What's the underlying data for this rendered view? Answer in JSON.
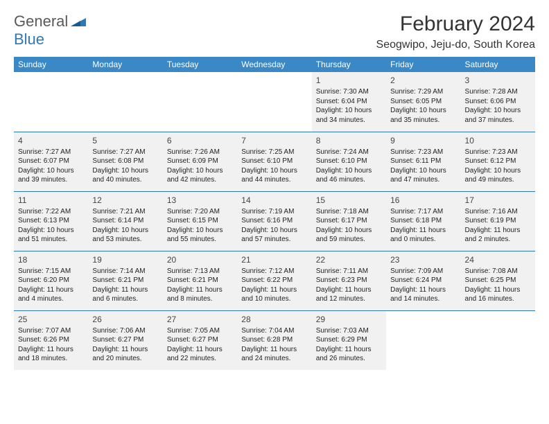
{
  "logo": {
    "general": "General",
    "blue": "Blue"
  },
  "title": {
    "month": "February 2024",
    "location": "Seogwipo, Jeju-do, South Korea"
  },
  "headers": [
    "Sunday",
    "Monday",
    "Tuesday",
    "Wednesday",
    "Thursday",
    "Friday",
    "Saturday"
  ],
  "styles": {
    "header_bg": "#3b88c7",
    "header_fg": "#ffffff",
    "cell_bg": "#f1f1f1",
    "border_color": "#2e78b8"
  },
  "weeks": [
    [
      null,
      null,
      null,
      null,
      {
        "n": "1",
        "sr": "Sunrise: 7:30 AM",
        "ss": "Sunset: 6:04 PM",
        "d1": "Daylight: 10 hours",
        "d2": "and 34 minutes."
      },
      {
        "n": "2",
        "sr": "Sunrise: 7:29 AM",
        "ss": "Sunset: 6:05 PM",
        "d1": "Daylight: 10 hours",
        "d2": "and 35 minutes."
      },
      {
        "n": "3",
        "sr": "Sunrise: 7:28 AM",
        "ss": "Sunset: 6:06 PM",
        "d1": "Daylight: 10 hours",
        "d2": "and 37 minutes."
      }
    ],
    [
      {
        "n": "4",
        "sr": "Sunrise: 7:27 AM",
        "ss": "Sunset: 6:07 PM",
        "d1": "Daylight: 10 hours",
        "d2": "and 39 minutes."
      },
      {
        "n": "5",
        "sr": "Sunrise: 7:27 AM",
        "ss": "Sunset: 6:08 PM",
        "d1": "Daylight: 10 hours",
        "d2": "and 40 minutes."
      },
      {
        "n": "6",
        "sr": "Sunrise: 7:26 AM",
        "ss": "Sunset: 6:09 PM",
        "d1": "Daylight: 10 hours",
        "d2": "and 42 minutes."
      },
      {
        "n": "7",
        "sr": "Sunrise: 7:25 AM",
        "ss": "Sunset: 6:10 PM",
        "d1": "Daylight: 10 hours",
        "d2": "and 44 minutes."
      },
      {
        "n": "8",
        "sr": "Sunrise: 7:24 AM",
        "ss": "Sunset: 6:10 PM",
        "d1": "Daylight: 10 hours",
        "d2": "and 46 minutes."
      },
      {
        "n": "9",
        "sr": "Sunrise: 7:23 AM",
        "ss": "Sunset: 6:11 PM",
        "d1": "Daylight: 10 hours",
        "d2": "and 47 minutes."
      },
      {
        "n": "10",
        "sr": "Sunrise: 7:23 AM",
        "ss": "Sunset: 6:12 PM",
        "d1": "Daylight: 10 hours",
        "d2": "and 49 minutes."
      }
    ],
    [
      {
        "n": "11",
        "sr": "Sunrise: 7:22 AM",
        "ss": "Sunset: 6:13 PM",
        "d1": "Daylight: 10 hours",
        "d2": "and 51 minutes."
      },
      {
        "n": "12",
        "sr": "Sunrise: 7:21 AM",
        "ss": "Sunset: 6:14 PM",
        "d1": "Daylight: 10 hours",
        "d2": "and 53 minutes."
      },
      {
        "n": "13",
        "sr": "Sunrise: 7:20 AM",
        "ss": "Sunset: 6:15 PM",
        "d1": "Daylight: 10 hours",
        "d2": "and 55 minutes."
      },
      {
        "n": "14",
        "sr": "Sunrise: 7:19 AM",
        "ss": "Sunset: 6:16 PM",
        "d1": "Daylight: 10 hours",
        "d2": "and 57 minutes."
      },
      {
        "n": "15",
        "sr": "Sunrise: 7:18 AM",
        "ss": "Sunset: 6:17 PM",
        "d1": "Daylight: 10 hours",
        "d2": "and 59 minutes."
      },
      {
        "n": "16",
        "sr": "Sunrise: 7:17 AM",
        "ss": "Sunset: 6:18 PM",
        "d1": "Daylight: 11 hours",
        "d2": "and 0 minutes."
      },
      {
        "n": "17",
        "sr": "Sunrise: 7:16 AM",
        "ss": "Sunset: 6:19 PM",
        "d1": "Daylight: 11 hours",
        "d2": "and 2 minutes."
      }
    ],
    [
      {
        "n": "18",
        "sr": "Sunrise: 7:15 AM",
        "ss": "Sunset: 6:20 PM",
        "d1": "Daylight: 11 hours",
        "d2": "and 4 minutes."
      },
      {
        "n": "19",
        "sr": "Sunrise: 7:14 AM",
        "ss": "Sunset: 6:21 PM",
        "d1": "Daylight: 11 hours",
        "d2": "and 6 minutes."
      },
      {
        "n": "20",
        "sr": "Sunrise: 7:13 AM",
        "ss": "Sunset: 6:21 PM",
        "d1": "Daylight: 11 hours",
        "d2": "and 8 minutes."
      },
      {
        "n": "21",
        "sr": "Sunrise: 7:12 AM",
        "ss": "Sunset: 6:22 PM",
        "d1": "Daylight: 11 hours",
        "d2": "and 10 minutes."
      },
      {
        "n": "22",
        "sr": "Sunrise: 7:11 AM",
        "ss": "Sunset: 6:23 PM",
        "d1": "Daylight: 11 hours",
        "d2": "and 12 minutes."
      },
      {
        "n": "23",
        "sr": "Sunrise: 7:09 AM",
        "ss": "Sunset: 6:24 PM",
        "d1": "Daylight: 11 hours",
        "d2": "and 14 minutes."
      },
      {
        "n": "24",
        "sr": "Sunrise: 7:08 AM",
        "ss": "Sunset: 6:25 PM",
        "d1": "Daylight: 11 hours",
        "d2": "and 16 minutes."
      }
    ],
    [
      {
        "n": "25",
        "sr": "Sunrise: 7:07 AM",
        "ss": "Sunset: 6:26 PM",
        "d1": "Daylight: 11 hours",
        "d2": "and 18 minutes."
      },
      {
        "n": "26",
        "sr": "Sunrise: 7:06 AM",
        "ss": "Sunset: 6:27 PM",
        "d1": "Daylight: 11 hours",
        "d2": "and 20 minutes."
      },
      {
        "n": "27",
        "sr": "Sunrise: 7:05 AM",
        "ss": "Sunset: 6:27 PM",
        "d1": "Daylight: 11 hours",
        "d2": "and 22 minutes."
      },
      {
        "n": "28",
        "sr": "Sunrise: 7:04 AM",
        "ss": "Sunset: 6:28 PM",
        "d1": "Daylight: 11 hours",
        "d2": "and 24 minutes."
      },
      {
        "n": "29",
        "sr": "Sunrise: 7:03 AM",
        "ss": "Sunset: 6:29 PM",
        "d1": "Daylight: 11 hours",
        "d2": "and 26 minutes."
      },
      null,
      null
    ]
  ]
}
